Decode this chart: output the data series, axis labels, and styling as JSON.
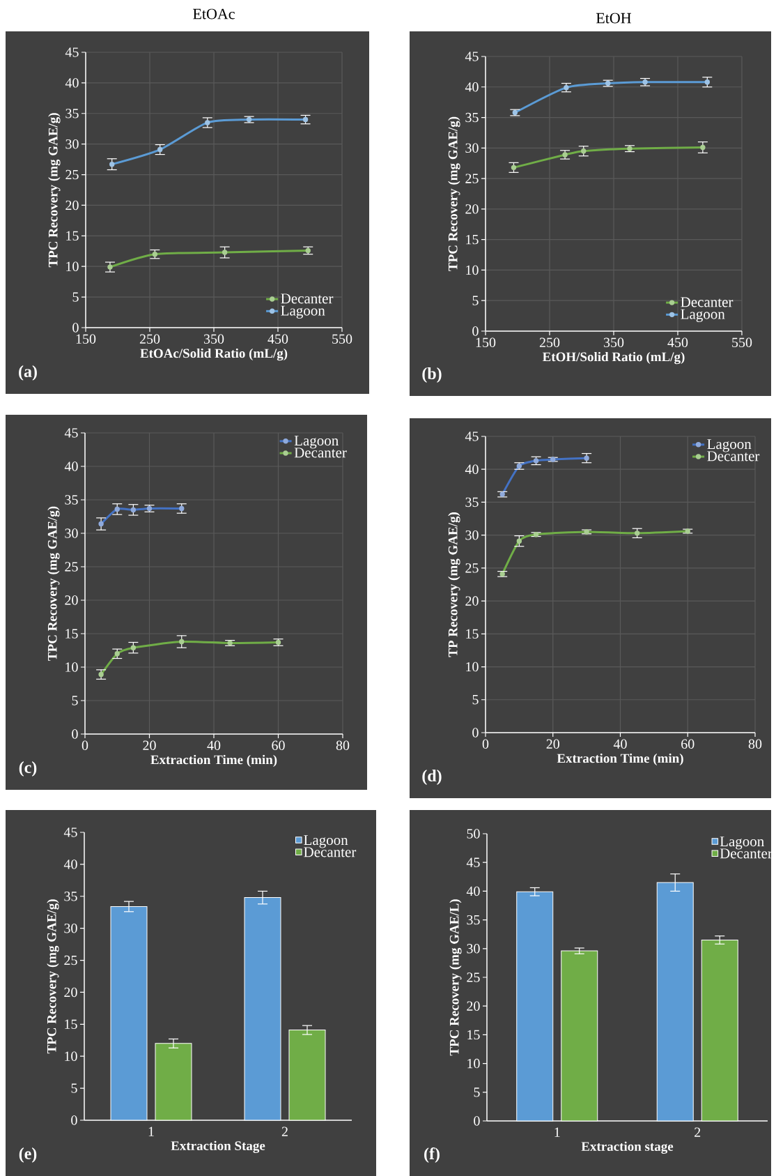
{
  "chart_data": [
    {
      "type": "line",
      "title": "EtOAc",
      "xlabel": "EtOAc/Solid Ratio (mL/g)",
      "ylabel": "TPC Recovery (mg GAE/g)",
      "xlim": [
        150,
        550
      ],
      "xticks": [
        150,
        250,
        350,
        450,
        550
      ],
      "ylim": [
        0,
        45
      ],
      "yticks": [
        0,
        5,
        10,
        15,
        20,
        25,
        30,
        35,
        40,
        45
      ],
      "grid": true,
      "legend": "bottom right",
      "marker": "circle",
      "line_style": "solid",
      "annotations": [
        "(a)"
      ],
      "series": [
        {
          "name": "Decanter",
          "color": "#70ad47",
          "x": [
            188,
            258,
            367,
            497
          ],
          "values": [
            9.9,
            12.0,
            12.3,
            12.6
          ],
          "errors": [
            0.8,
            0.7,
            0.9,
            0.6
          ]
        },
        {
          "name": "Lagoon",
          "color": "#5b9bd5",
          "x": [
            191,
            266,
            340,
            405,
            493
          ],
          "values": [
            26.7,
            29.1,
            33.5,
            34.0,
            34.0
          ],
          "errors": [
            0.9,
            0.8,
            0.8,
            0.5,
            0.7
          ]
        }
      ]
    },
    {
      "type": "line",
      "title": "EtOH",
      "xlabel": "EtOH/Solid Ratio (mL/g)",
      "ylabel": "TPC Recovery (mg GAE/g)",
      "xlim": [
        150,
        550
      ],
      "xticks": [
        150,
        250,
        350,
        450,
        550
      ],
      "ylim": [
        0,
        45
      ],
      "yticks": [
        0,
        5,
        10,
        15,
        20,
        25,
        30,
        35,
        40,
        45
      ],
      "grid": true,
      "legend": "bottom right",
      "marker": "circle",
      "line_style": "solid",
      "annotations": [
        "(b)"
      ],
      "series": [
        {
          "name": "Decanter",
          "color": "#70ad47",
          "x": [
            194,
            274,
            303,
            375,
            489
          ],
          "values": [
            26.8,
            28.9,
            29.5,
            29.9,
            30.1
          ],
          "errors": [
            0.8,
            0.7,
            0.8,
            0.5,
            0.9
          ]
        },
        {
          "name": "Lagoon",
          "color": "#5b9bd5",
          "x": [
            196,
            276,
            341,
            399,
            496
          ],
          "values": [
            35.8,
            39.9,
            40.6,
            40.8,
            40.8
          ],
          "errors": [
            0.5,
            0.7,
            0.5,
            0.6,
            0.8
          ]
        }
      ]
    },
    {
      "type": "line",
      "xlabel": "Extraction Time (min)",
      "ylabel": "TPC Recovery (mg GAE/g)",
      "xlim": [
        0,
        80
      ],
      "xticks": [
        0,
        20,
        40,
        60,
        80
      ],
      "ylim": [
        0,
        45
      ],
      "yticks": [
        0,
        5,
        10,
        15,
        20,
        25,
        30,
        35,
        40,
        45
      ],
      "grid": true,
      "legend": "top right",
      "marker": "circle",
      "line_style": "solid",
      "annotations": [
        "(c)"
      ],
      "series": [
        {
          "name": "Lagoon",
          "color": "#4472c4",
          "x": [
            5,
            10,
            15,
            20,
            30
          ],
          "values": [
            31.4,
            33.6,
            33.5,
            33.7,
            33.7
          ],
          "errors": [
            0.9,
            0.8,
            0.8,
            0.5,
            0.7
          ]
        },
        {
          "name": "Decanter",
          "color": "#70ad47",
          "x": [
            5,
            10,
            15,
            30,
            45,
            60
          ],
          "values": [
            8.9,
            12.0,
            12.9,
            13.8,
            13.6,
            13.7
          ],
          "errors": [
            0.7,
            0.7,
            0.8,
            0.9,
            0.4,
            0.5
          ]
        }
      ]
    },
    {
      "type": "line",
      "xlabel": "Extraction Time (min)",
      "ylabel": "TP Recovery (mg GAE/g)",
      "xlim": [
        0,
        80
      ],
      "xticks": [
        0,
        20,
        40,
        60,
        80
      ],
      "ylim": [
        0,
        45
      ],
      "yticks": [
        0,
        5,
        10,
        15,
        20,
        25,
        30,
        35,
        40,
        45
      ],
      "grid": true,
      "legend": "top right",
      "marker": "circle",
      "line_style": "solid",
      "annotations": [
        "(d)"
      ],
      "series": [
        {
          "name": "Lagoon",
          "color": "#4472c4",
          "x": [
            5,
            10,
            15,
            20,
            30
          ],
          "values": [
            36.2,
            40.5,
            41.3,
            41.5,
            41.7
          ],
          "errors": [
            0.4,
            0.5,
            0.6,
            0.3,
            0.7
          ]
        },
        {
          "name": "Decanter",
          "color": "#70ad47",
          "x": [
            5,
            10,
            15,
            30,
            45,
            60
          ],
          "values": [
            24.1,
            29.1,
            30.1,
            30.5,
            30.3,
            30.6
          ],
          "errors": [
            0.4,
            0.8,
            0.3,
            0.3,
            0.7,
            0.3
          ]
        }
      ]
    },
    {
      "type": "bar",
      "xlabel": "Extraction Stage",
      "ylabel": "TPC Recovery (mg GAE/g)",
      "categories": [
        "1",
        "2"
      ],
      "ylim": [
        0,
        45
      ],
      "yticks": [
        0,
        5,
        10,
        15,
        20,
        25,
        30,
        35,
        40,
        45
      ],
      "legend": "top right",
      "annotations": [
        "(e)"
      ],
      "series": [
        {
          "name": "Lagoon",
          "color": "#5b9bd5",
          "values": [
            33.4,
            34.8
          ],
          "errors": [
            0.8,
            1.0
          ]
        },
        {
          "name": "Decanter",
          "color": "#70ad47",
          "values": [
            12.0,
            14.1
          ],
          "errors": [
            0.7,
            0.7
          ]
        }
      ]
    },
    {
      "type": "bar",
      "xlabel": "Extraction stage",
      "ylabel": "TPC Recovery (mg GAE/L)",
      "categories": [
        "1",
        "2"
      ],
      "ylim": [
        0,
        50
      ],
      "yticks": [
        0,
        5,
        10,
        15,
        20,
        25,
        30,
        35,
        40,
        45,
        50
      ],
      "legend": "top right",
      "annotations": [
        "(f)"
      ],
      "series": [
        {
          "name": "Lagoon",
          "color": "#5b9bd5",
          "values": [
            39.9,
            41.5
          ],
          "errors": [
            0.7,
            1.5
          ]
        },
        {
          "name": "Decanter",
          "color": "#70ad47",
          "values": [
            29.6,
            31.5
          ],
          "errors": [
            0.5,
            0.7
          ]
        }
      ]
    }
  ]
}
